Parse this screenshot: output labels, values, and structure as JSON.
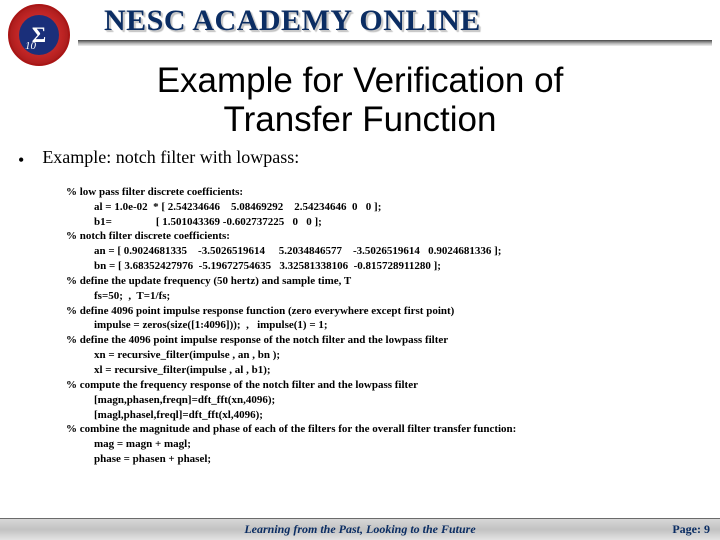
{
  "header": {
    "banner": "NESC ACADEMY ONLINE",
    "sigma": "Σ",
    "ten": "10"
  },
  "slide": {
    "title_l1": "Example for Verification of",
    "title_l2": "Transfer Function"
  },
  "body": {
    "bullet": "•",
    "example_label": "Example:  notch filter with lowpass:",
    "code": {
      "c01": "% low pass filter discrete coefficients:",
      "c02": "al = 1.0e-02  * [ 2.54234646    5.08469292    2.54234646  0   0 ];",
      "c03": "b1=                [ 1.501043369 -0.602737225   0   0 ];",
      "c04": "% notch filter discrete coefficients:",
      "c05": "an = [ 0.9024681335    -3.5026519614     5.2034846577    -3.5026519614   0.9024681336 ];",
      "c06": "bn = [ 3.68352427976  -5.19672754635   3.32581338106  -0.815728911280 ];",
      "c07": "% define the update frequency (50 hertz) and sample time, T",
      "c08": "fs=50;  ,  T=1/fs;",
      "c09": "% define 4096 point impulse response function (zero everywhere except first point)",
      "c10": "impulse = zeros(size([1:4096]));  ,   impulse(1) = 1;",
      "c11": "% define the 4096 point impulse response of the notch filter and the lowpass filter",
      "c12": "xn = recursive_filter(impulse , an , bn );",
      "c13": "xl = recursive_filter(impulse , al , b1);",
      "c14": "% compute the frequency response of the notch filter and the lowpass filter",
      "c15": "[magn,phasen,freqn]=dft_fft(xn,4096);",
      "c16": "[magl,phasel,freql]=dft_fft(xl,4096);",
      "c17": "% combine the magnitude and phase of each of the filters for the overall filter transfer function:",
      "c18": "mag = magn + magl;",
      "c19": "phase = phasen + phasel;"
    }
  },
  "footer": {
    "text": "Learning from the Past, Looking to the Future",
    "page": "Page: 9"
  },
  "colors": {
    "title_blue": "#0b2d63",
    "background": "#ffffff"
  }
}
